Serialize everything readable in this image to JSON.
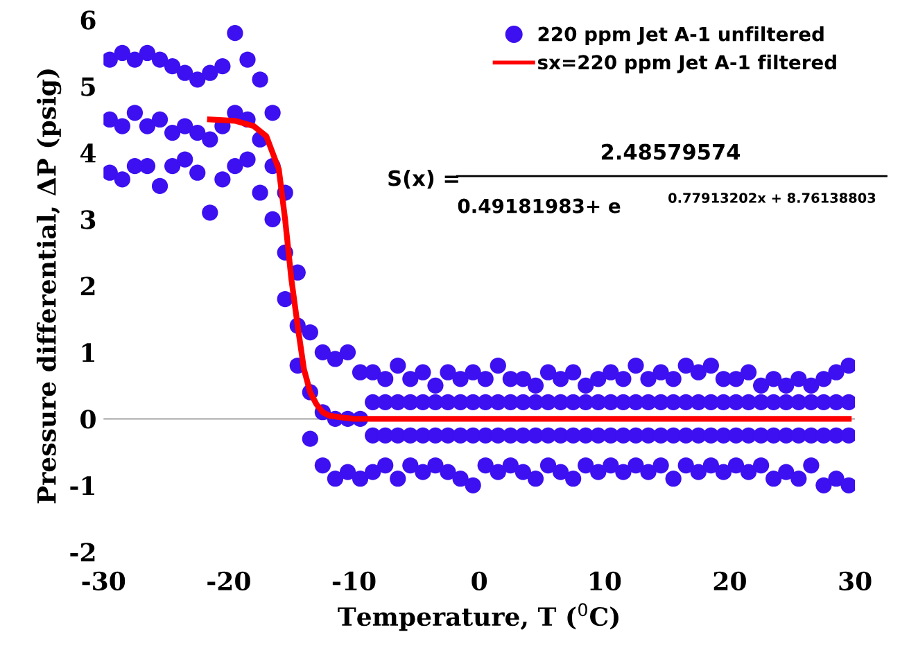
{
  "chart_data": {
    "type": "scatter",
    "xlabel": "Temperature, T ($^{0}$C)",
    "ylabel": "Pressure differential, ΔP (psig)",
    "xlim": [
      -30,
      30
    ],
    "xticks": [
      -30,
      -20,
      -10,
      0,
      10,
      20,
      30
    ],
    "ylim": [
      -2,
      6
    ],
    "yticks": [
      -2,
      -1,
      0,
      1,
      2,
      3,
      4,
      5,
      6
    ],
    "grid": false,
    "legend": "top right",
    "marker": "circle",
    "ref_lines": [
      {
        "axis": "y",
        "value": 0,
        "color": "#bfbfbf"
      }
    ],
    "annotations": [
      "S(x) =",
      "2.48579574",
      "0.49181983+ e",
      "0.77913202x + 8.76138803"
    ],
    "series": [
      {
        "name": "220 ppm Jet A-1 unfiltered",
        "color": "#3c10f0",
        "x": [
          -29.5,
          -28.5,
          -27.5,
          -26.5,
          -25.5,
          -24.5,
          -23.5,
          -22.5,
          -21.5,
          -20.5,
          -19.5,
          -18.5,
          -17.5,
          -16.5,
          -15.5,
          -14.5,
          -13.5,
          -12.5,
          -11.5,
          -10.5,
          -9.5,
          -29.5,
          -28.5,
          -27.5,
          -26.5,
          -25.5,
          -24.5,
          -23.5,
          -22.5,
          -21.5,
          -20.5,
          -19.5,
          -18.5,
          -17.5,
          -16.5,
          -15.5,
          -14.5,
          -13.5,
          -12.5,
          -11.5,
          -10.5,
          -9.5,
          -29.5,
          -28.5,
          -27.5,
          -26.5,
          -25.5,
          -24.5,
          -23.5,
          -22.5,
          -21.5,
          -20.5,
          -19.5,
          -18.5,
          -17.5,
          -16.5,
          -15.5,
          -14.5,
          -13.5,
          -12.5,
          -11.5,
          -10.5,
          -9.5,
          -8.5,
          -7.5,
          -6.5,
          -5.5,
          -4.5,
          -3.5,
          -2.5,
          -1.5,
          -0.5,
          0.5,
          1.5,
          2.5,
          3.5,
          4.5,
          5.5,
          6.5,
          7.5,
          8.5,
          9.5,
          10.5,
          11.5,
          12.5,
          13.5,
          14.5,
          15.5,
          16.5,
          17.5,
          18.5,
          19.5,
          20.5,
          21.5,
          22.5,
          23.5,
          24.5,
          25.5,
          26.5,
          27.5,
          28.5,
          29.5,
          -8.5,
          -7.5,
          -6.5,
          -5.5,
          -4.5,
          -3.5,
          -2.5,
          -1.5,
          -0.5,
          0.5,
          1.5,
          2.5,
          3.5,
          4.5,
          5.5,
          6.5,
          7.5,
          8.5,
          9.5,
          10.5,
          11.5,
          12.5,
          13.5,
          14.5,
          15.5,
          16.5,
          17.5,
          18.5,
          19.5,
          20.5,
          21.5,
          22.5,
          23.5,
          24.5,
          25.5,
          26.5,
          27.5,
          28.5,
          29.5,
          -8.5,
          -7.5,
          -6.5,
          -5.5,
          -4.5,
          -3.5,
          -2.5,
          -1.5,
          -0.5,
          0.5,
          1.5,
          2.5,
          3.5,
          4.5,
          5.5,
          6.5,
          7.5,
          8.5,
          9.5,
          10.5,
          11.5,
          12.5,
          13.5,
          14.5,
          15.5,
          16.5,
          17.5,
          18.5,
          19.5,
          20.5,
          21.5,
          22.5,
          23.5,
          24.5,
          25.5,
          26.5,
          27.5,
          28.5,
          29.5,
          -8.5,
          -7.5,
          -6.5,
          -5.5,
          -4.5,
          -3.5,
          -2.5,
          -1.5,
          -0.5,
          0.5,
          1.5,
          2.5,
          3.5,
          4.5,
          5.5,
          6.5,
          7.5,
          8.5,
          9.5,
          10.5,
          11.5,
          12.5,
          13.5,
          14.5,
          15.5,
          16.5,
          17.5,
          18.5,
          19.5,
          20.5,
          21.5,
          22.5,
          23.5,
          24.5,
          25.5,
          26.5,
          27.5,
          28.5,
          29.5
        ],
        "values": [
          5.4,
          5.5,
          5.4,
          5.5,
          5.4,
          5.3,
          5.2,
          5.1,
          5.2,
          5.3,
          5.8,
          5.4,
          5.1,
          4.6,
          3.4,
          2.2,
          1.3,
          1.0,
          0.9,
          1.0,
          0.7,
          4.5,
          4.4,
          4.6,
          4.4,
          4.5,
          4.3,
          4.4,
          4.3,
          4.2,
          4.4,
          4.6,
          4.5,
          4.2,
          3.8,
          2.5,
          1.4,
          0.4,
          0.1,
          0,
          0,
          0,
          3.7,
          3.6,
          3.8,
          3.8,
          3.5,
          3.8,
          3.9,
          3.7,
          3.1,
          3.6,
          3.8,
          3.9,
          3.4,
          3.0,
          1.8,
          0.8,
          -0.3,
          -0.7,
          -0.9,
          -0.8,
          -0.9,
          0.7,
          0.6,
          0.8,
          0.6,
          0.7,
          0.5,
          0.7,
          0.6,
          0.7,
          0.6,
          0.8,
          0.6,
          0.6,
          0.5,
          0.7,
          0.6,
          0.7,
          0.5,
          0.6,
          0.7,
          0.6,
          0.8,
          0.6,
          0.7,
          0.6,
          0.8,
          0.7,
          0.8,
          0.6,
          0.6,
          0.7,
          0.5,
          0.6,
          0.5,
          0.6,
          0.5,
          0.6,
          0.7,
          0.8,
          0.25,
          0.25,
          0.25,
          0.25,
          0.25,
          0.25,
          0.25,
          0.25,
          0.25,
          0.25,
          0.25,
          0.25,
          0.25,
          0.25,
          0.25,
          0.25,
          0.25,
          0.25,
          0.25,
          0.25,
          0.25,
          0.25,
          0.25,
          0.25,
          0.25,
          0.25,
          0.25,
          0.25,
          0.25,
          0.25,
          0.25,
          0.25,
          0.25,
          0.25,
          0.25,
          0.25,
          0.25,
          0.25,
          0.25,
          -0.25,
          -0.25,
          -0.25,
          -0.25,
          -0.25,
          -0.25,
          -0.25,
          -0.25,
          -0.25,
          -0.25,
          -0.25,
          -0.25,
          -0.25,
          -0.25,
          -0.25,
          -0.25,
          -0.25,
          -0.25,
          -0.25,
          -0.25,
          -0.25,
          -0.25,
          -0.25,
          -0.25,
          -0.25,
          -0.25,
          -0.25,
          -0.25,
          -0.25,
          -0.25,
          -0.25,
          -0.25,
          -0.25,
          -0.25,
          -0.25,
          -0.25,
          -0.25,
          -0.25,
          -0.25,
          -0.8,
          -0.7,
          -0.9,
          -0.7,
          -0.8,
          -0.7,
          -0.8,
          -0.9,
          -1.0,
          -0.7,
          -0.8,
          -0.7,
          -0.8,
          -0.9,
          -0.7,
          -0.8,
          -0.9,
          -0.7,
          -0.8,
          -0.7,
          -0.8,
          -0.7,
          -0.8,
          -0.7,
          -0.9,
          -0.7,
          -0.8,
          -0.7,
          -0.8,
          -0.7,
          -0.8,
          -0.7,
          -0.9,
          -0.8,
          -0.9,
          -0.7,
          -1.0,
          -0.9,
          -1.0
        ]
      },
      {
        "name": "sx=220 ppm Jet A-1 filtered",
        "color": "#ff0000",
        "type": "line",
        "marker": "none",
        "line_style": "solid",
        "x": [
          -21.5,
          -19.5,
          -18,
          -17,
          -16,
          -15.5,
          -15,
          -14.5,
          -14,
          -13.5,
          -13,
          -12.5,
          -12,
          -11,
          -10,
          29.5
        ],
        "values": [
          4.5,
          4.48,
          4.4,
          4.25,
          3.75,
          3.0,
          2.1,
          1.4,
          0.75,
          0.4,
          0.22,
          0.1,
          0.05,
          0.02,
          0,
          0
        ]
      }
    ]
  }
}
